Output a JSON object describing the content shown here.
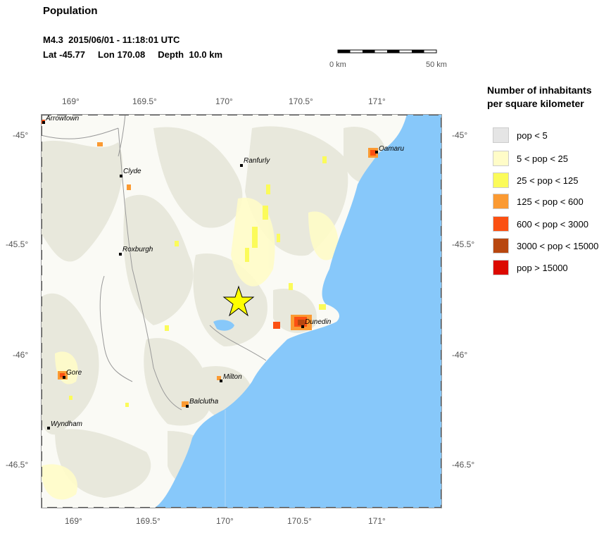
{
  "title": "Population",
  "event": {
    "line1": "M4.3  2015/06/01 - 11:18:01 UTC",
    "line2": "Lat -45.77     Lon 170.08     Depth  10.0 km"
  },
  "scale": {
    "start_label": "0 km",
    "end_label": "50 km"
  },
  "axes": {
    "lon_ticks_top": [
      "169°",
      "169.5°",
      "170°",
      "170.5°",
      "171°"
    ],
    "lon_ticks_bottom": [
      "169°",
      "169.5°",
      "170°",
      "170.5°",
      "171°"
    ],
    "lat_ticks_left": [
      "-45°",
      "-45.5°",
      "-46°",
      "-46.5°"
    ],
    "lat_ticks_right": [
      "-45°",
      "-45.5°",
      "-46°",
      "-46.5°"
    ]
  },
  "cities": [
    "Arrowtown",
    "Oamaru",
    "Ranfurly",
    "Clyde",
    "Roxburgh",
    "Dunedin",
    "Gore",
    "Milton",
    "Balclutha",
    "Wyndham"
  ],
  "legend": {
    "title_line1": "Number of inhabitants",
    "title_line2": "per square kilometer",
    "items": [
      {
        "label": "pop < 5",
        "color": "#e5e5e5"
      },
      {
        "label": "5 < pop < 25",
        "color": "#fffcc8"
      },
      {
        "label": "25 < pop < 125",
        "color": "#fbfb5a"
      },
      {
        "label": "125 < pop < 600",
        "color": "#fb9a32"
      },
      {
        "label": "600 < pop < 3000",
        "color": "#fb5012"
      },
      {
        "label": "3000 < pop < 15000",
        "color": "#b8470f"
      },
      {
        "label": "pop > 15000",
        "color": "#dc0a00"
      }
    ]
  },
  "colors": {
    "ocean": "#87c8fa",
    "epicenter": "#ffff00",
    "land": "#fafaf5",
    "low_density": "#e8e8dc"
  }
}
